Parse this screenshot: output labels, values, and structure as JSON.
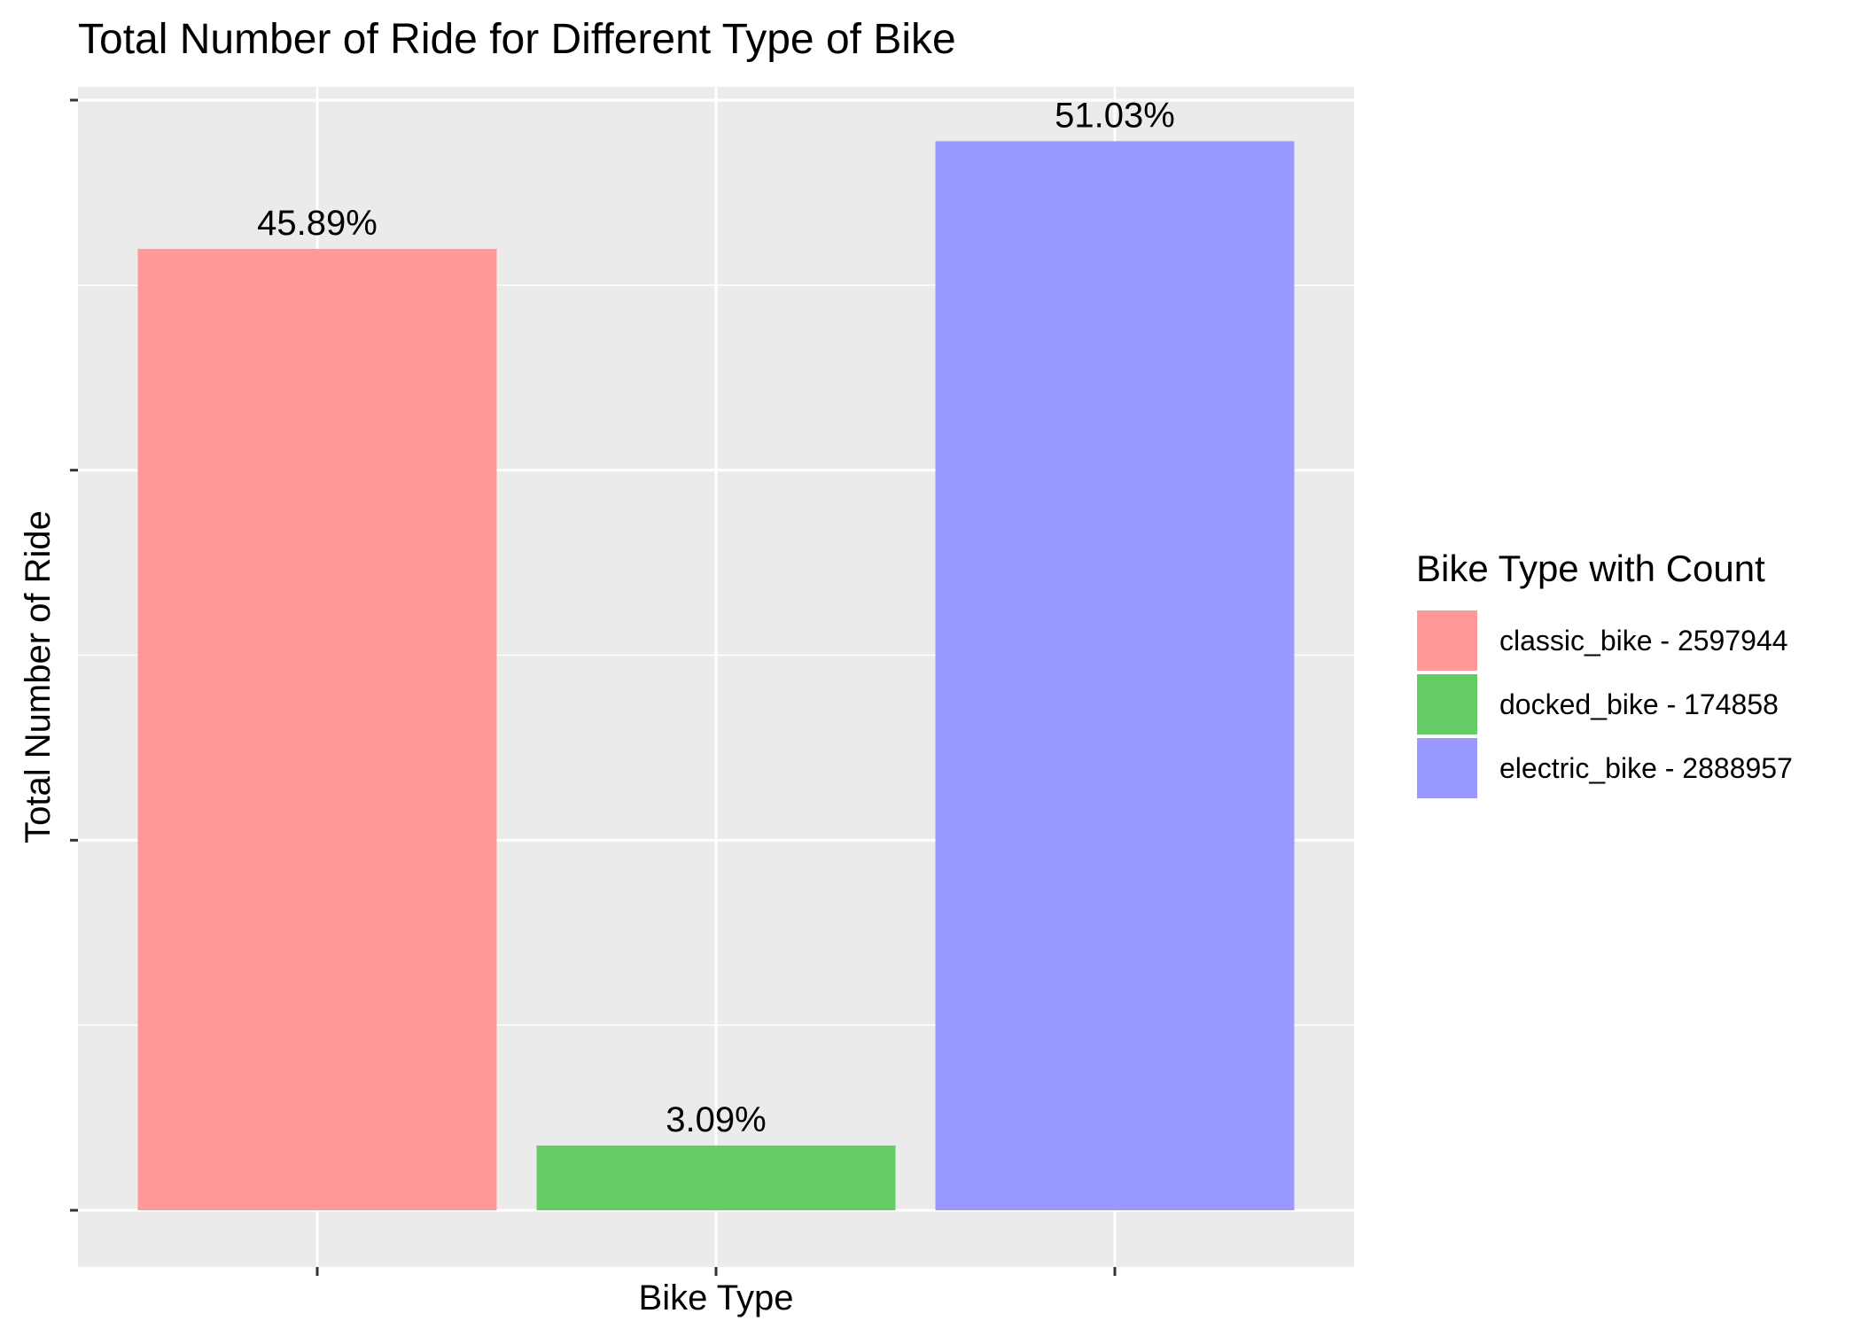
{
  "chart_data": {
    "type": "bar",
    "title": "Total Number of Ride for Different Type of Bike",
    "xlabel": "Bike Type",
    "ylabel": "Total Number of Ride",
    "categories": [
      "classic_bike",
      "docked_bike",
      "electric_bike"
    ],
    "values": [
      2597944,
      174858,
      2888957
    ],
    "data_labels": [
      "45.89%",
      "3.09%",
      "51.03%"
    ],
    "x_tick_labels_shown": false,
    "y_tick_labels_shown": false,
    "ylim": [
      0,
      3000000
    ],
    "y_major_ticks": [
      0,
      1000000,
      2000000,
      3000000
    ],
    "grid": true,
    "legend": {
      "title": "Bike Type with Count",
      "placement": "right",
      "entries": [
        {
          "label": "classic_bike - 2597944",
          "color": "#FF9999"
        },
        {
          "label": "docked_bike - 174858",
          "color": "#66CC66"
        },
        {
          "label": "electric_bike - 2888957",
          "color": "#9999FF"
        }
      ]
    },
    "colors": [
      "#FF9999",
      "#66CC66",
      "#9999FF"
    ],
    "panel_background": "#EBEBEB",
    "grid_color": "#FFFFFF"
  }
}
